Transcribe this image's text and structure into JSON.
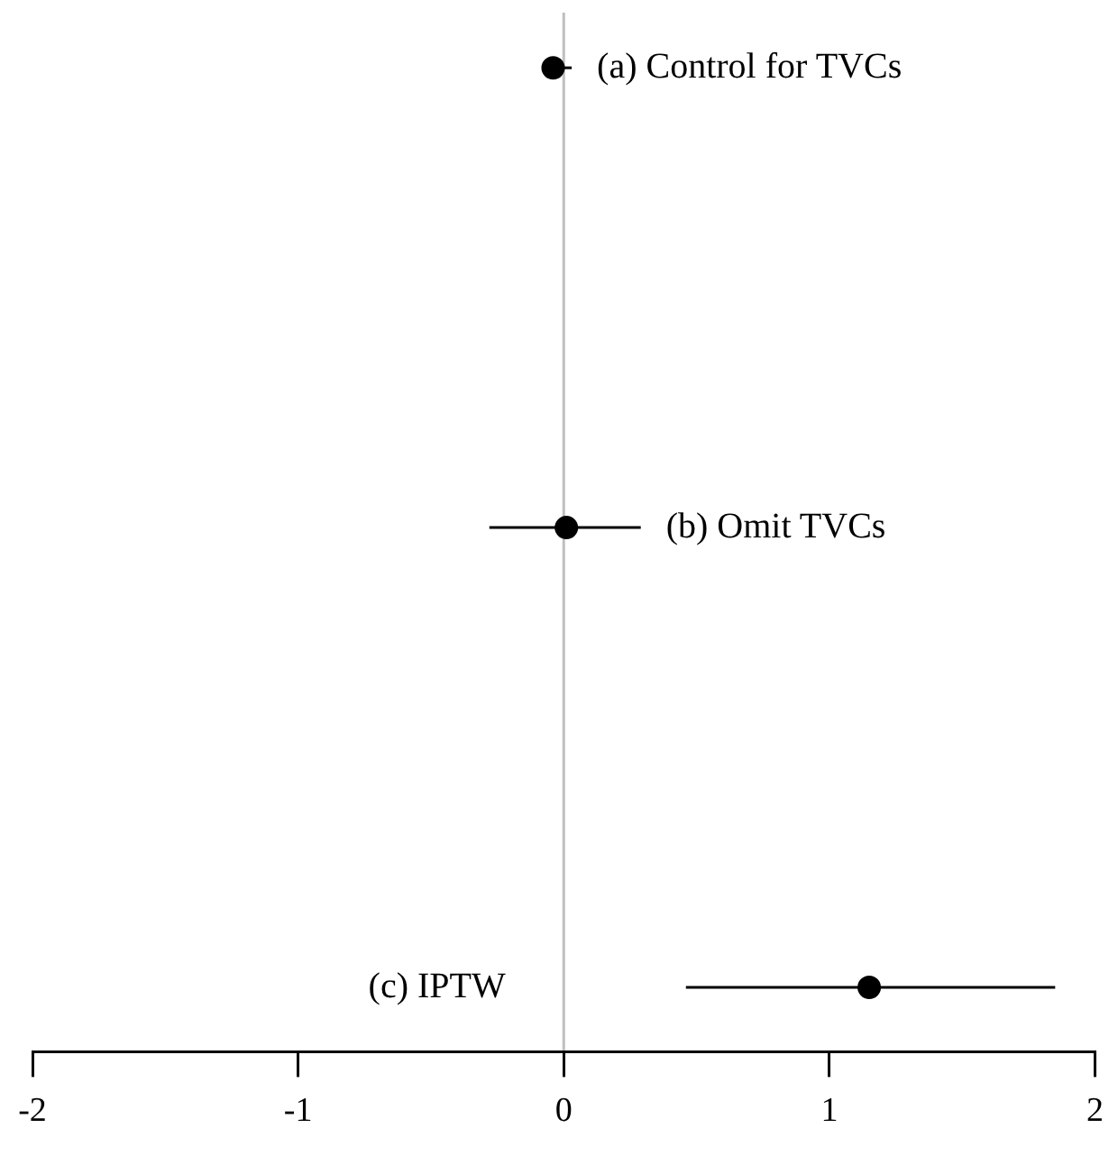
{
  "chart_data": {
    "type": "scatter",
    "orientation": "horizontal",
    "categories": [
      "(a) Control for TVCs",
      "(b) Omit TVCs",
      "(c) IPTW"
    ],
    "values": [
      -0.04,
      0.01,
      1.15
    ],
    "errors": [
      [
        -0.07,
        0.03
      ],
      [
        -0.28,
        0.29
      ],
      [
        0.46,
        1.85
      ]
    ],
    "color": "#000000",
    "marker": "circle",
    "xlim": [
      -2,
      2
    ],
    "xticks": [
      -2,
      -1,
      0,
      1,
      2
    ],
    "ref_lines": [
      {
        "axis": "x",
        "value": 0,
        "color": "#bfbfbf"
      }
    ],
    "tick_labels": "x",
    "grid": false,
    "legend": false
  }
}
